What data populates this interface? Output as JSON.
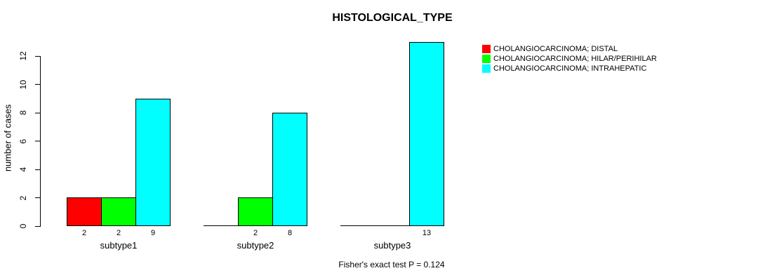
{
  "chart_data": {
    "type": "bar",
    "title": "HISTOLOGICAL_TYPE",
    "ylabel": "number of cases",
    "xlabel": "",
    "categories": [
      "subtype1",
      "subtype2",
      "subtype3"
    ],
    "series": [
      {
        "name": "CHOLANGIOCARCINOMA; DISTAL",
        "color": "#ff0000",
        "values": [
          2,
          0,
          0
        ]
      },
      {
        "name": "CHOLANGIOCARCINOMA; HILAR/PERIHILAR",
        "color": "#00ff00",
        "values": [
          2,
          2,
          0
        ]
      },
      {
        "name": "CHOLANGIOCARCINOMA; INTRAHEPATIC",
        "color": "#00ffff",
        "values": [
          9,
          8,
          13
        ]
      }
    ],
    "bar_value_labels": [
      [
        "2",
        "",
        ""
      ],
      [
        "2",
        "2",
        ""
      ],
      [
        "9",
        "8",
        "13"
      ]
    ],
    "yticks": [
      0,
      2,
      4,
      6,
      8,
      10,
      12
    ],
    "ylim": [
      0,
      13
    ],
    "grid": false,
    "legend_position": "top-right",
    "footer": "Fisher's exact test P = 0.124"
  }
}
